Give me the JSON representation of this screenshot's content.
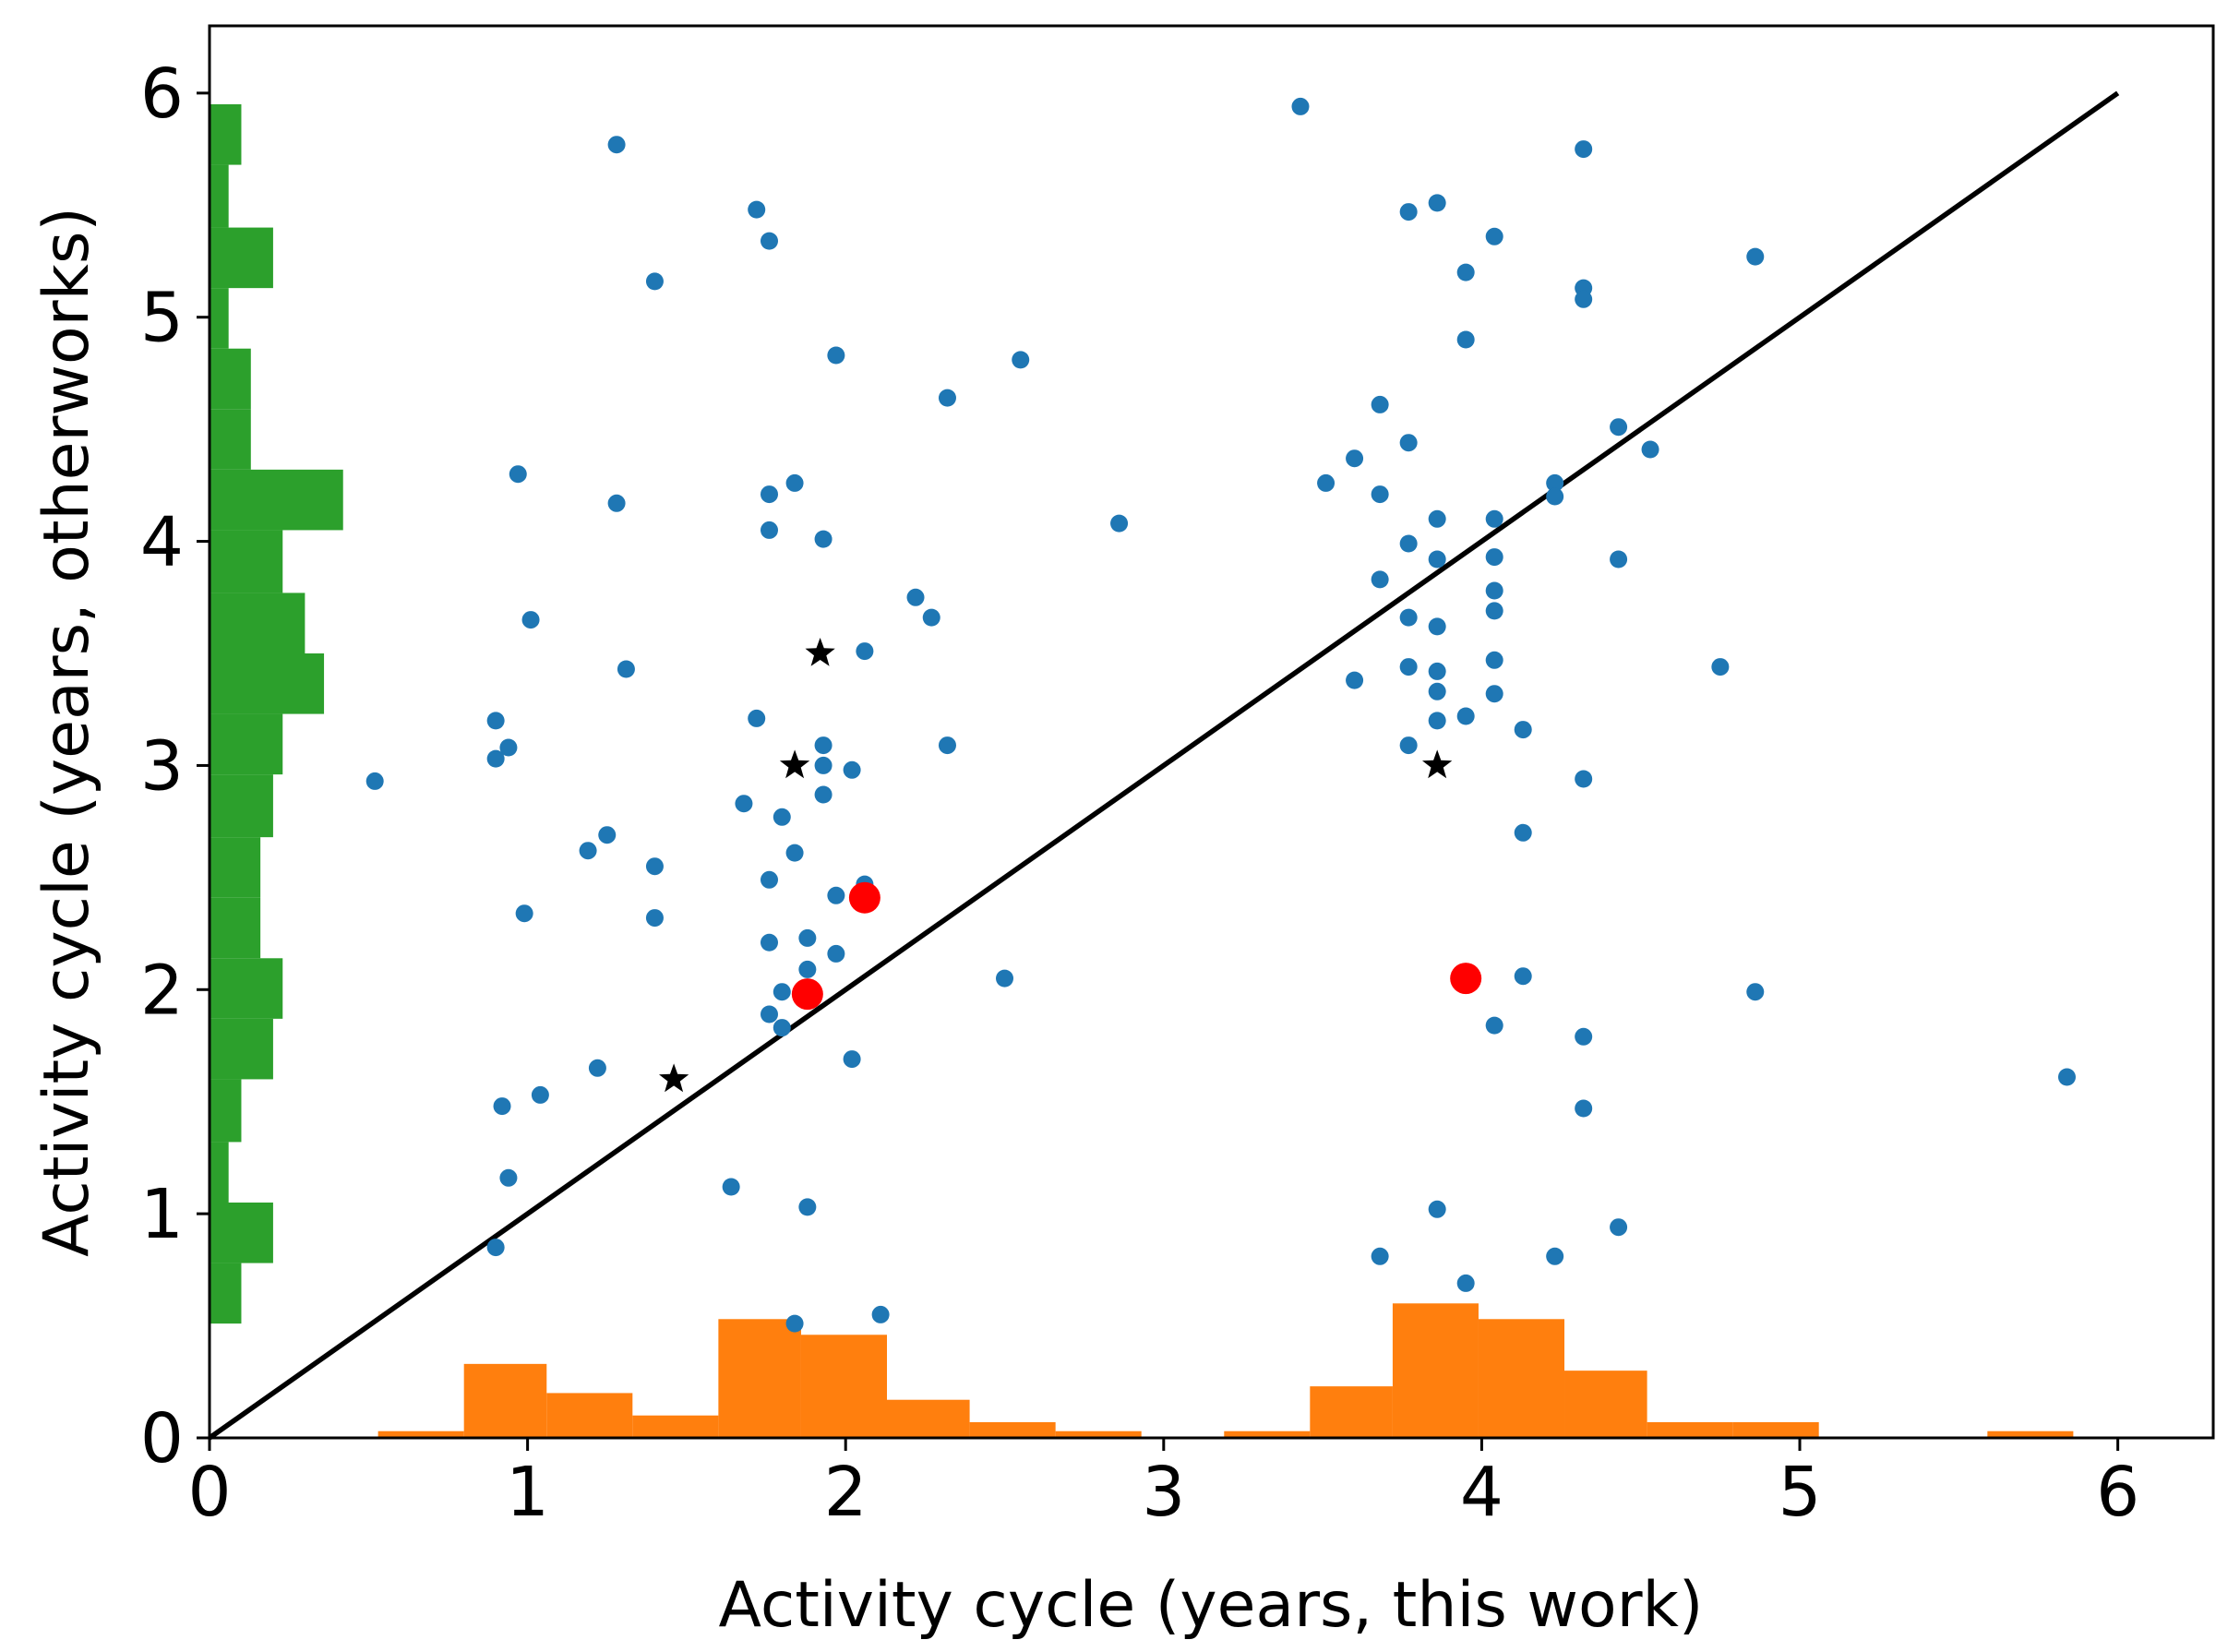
{
  "chart_data": {
    "type": "scatter",
    "title": "",
    "xlabel": "Activity cycle (years, this work)",
    "ylabel": "Activity cycle (years, otherworks)",
    "xlim": [
      0,
      6.3
    ],
    "ylim": [
      0,
      6.3
    ],
    "xticks": [
      "0",
      "1",
      "2",
      "3",
      "4",
      "5",
      "6"
    ],
    "yticks": [
      "0",
      "1",
      "2",
      "3",
      "4",
      "5",
      "6"
    ],
    "grid": false,
    "colors": {
      "points": "#1f77b4",
      "highlight": "#ff0000",
      "stars": "#000000",
      "line": "#000000",
      "hist_x": "#ff7f0e",
      "hist_y": "#2ca02c"
    },
    "reference_line": {
      "x": [
        0,
        6
      ],
      "y": [
        0,
        6
      ]
    },
    "series": [
      {
        "marker": "dot",
        "points": [
          [
            0.52,
            2.93
          ],
          [
            0.9,
            3.2
          ],
          [
            0.9,
            3.03
          ],
          [
            0.94,
            3.08
          ],
          [
            0.97,
            4.3
          ],
          [
            1.01,
            3.65
          ],
          [
            0.99,
            2.34
          ],
          [
            0.92,
            1.48
          ],
          [
            1.04,
            1.53
          ],
          [
            0.94,
            1.16
          ],
          [
            0.9,
            0.85
          ],
          [
            1.19,
            2.62
          ],
          [
            1.25,
            2.69
          ],
          [
            1.28,
            4.17
          ],
          [
            1.28,
            5.77
          ],
          [
            1.31,
            3.43
          ],
          [
            1.4,
            2.55
          ],
          [
            1.4,
            2.32
          ],
          [
            1.4,
            5.16
          ],
          [
            1.22,
            1.65
          ],
          [
            1.64,
            1.12
          ],
          [
            1.68,
            2.83
          ],
          [
            1.72,
            3.21
          ],
          [
            1.72,
            5.48
          ],
          [
            1.76,
            5.34
          ],
          [
            1.76,
            4.21
          ],
          [
            1.76,
            4.05
          ],
          [
            1.84,
            4.26
          ],
          [
            1.93,
            4.01
          ],
          [
            1.76,
            2.49
          ],
          [
            1.8,
            2.77
          ],
          [
            1.84,
            2.61
          ],
          [
            1.76,
            2.21
          ],
          [
            1.88,
            2.23
          ],
          [
            1.88,
            2.09
          ],
          [
            1.8,
            1.99
          ],
          [
            1.76,
            1.89
          ],
          [
            1.8,
            1.83
          ],
          [
            1.88,
            1.03
          ],
          [
            1.84,
            0.51
          ],
          [
            1.93,
            3.09
          ],
          [
            1.93,
            3.0
          ],
          [
            1.93,
            2.87
          ],
          [
            1.97,
            2.42
          ],
          [
            1.97,
            2.16
          ],
          [
            2.02,
            2.98
          ],
          [
            2.06,
            3.51
          ],
          [
            2.06,
            2.47
          ],
          [
            2.02,
            1.69
          ],
          [
            2.11,
            0.55
          ],
          [
            1.97,
            4.83
          ],
          [
            2.22,
            3.75
          ],
          [
            2.27,
            3.66
          ],
          [
            2.32,
            3.09
          ],
          [
            2.32,
            4.64
          ],
          [
            2.5,
            2.05
          ],
          [
            2.55,
            4.81
          ],
          [
            2.86,
            4.08
          ],
          [
            3.43,
            5.94
          ],
          [
            3.51,
            4.26
          ],
          [
            3.6,
            4.37
          ],
          [
            3.6,
            3.38
          ],
          [
            3.68,
            4.61
          ],
          [
            3.68,
            4.21
          ],
          [
            3.68,
            3.83
          ],
          [
            3.68,
            0.81
          ],
          [
            3.77,
            5.47
          ],
          [
            3.77,
            4.44
          ],
          [
            3.77,
            3.99
          ],
          [
            3.77,
            3.66
          ],
          [
            3.77,
            3.44
          ],
          [
            3.77,
            3.09
          ],
          [
            3.86,
            5.51
          ],
          [
            3.86,
            4.1
          ],
          [
            3.86,
            3.92
          ],
          [
            3.86,
            3.62
          ],
          [
            3.86,
            3.42
          ],
          [
            3.86,
            3.33
          ],
          [
            3.86,
            3.2
          ],
          [
            3.86,
            1.02
          ],
          [
            3.95,
            5.2
          ],
          [
            3.95,
            4.9
          ],
          [
            3.95,
            3.22
          ],
          [
            3.95,
            0.69
          ],
          [
            4.04,
            5.36
          ],
          [
            4.04,
            4.1
          ],
          [
            4.04,
            3.93
          ],
          [
            4.04,
            3.78
          ],
          [
            4.04,
            3.69
          ],
          [
            4.04,
            3.47
          ],
          [
            4.04,
            3.32
          ],
          [
            4.04,
            1.84
          ],
          [
            4.13,
            3.16
          ],
          [
            4.13,
            2.7
          ],
          [
            4.13,
            2.06
          ],
          [
            4.23,
            4.26
          ],
          [
            4.23,
            4.2
          ],
          [
            4.23,
            0.81
          ],
          [
            4.32,
            5.75
          ],
          [
            4.32,
            5.13
          ],
          [
            4.32,
            5.08
          ],
          [
            4.32,
            2.94
          ],
          [
            4.32,
            1.79
          ],
          [
            4.32,
            1.47
          ],
          [
            4.43,
            4.51
          ],
          [
            4.43,
            3.92
          ],
          [
            4.43,
            0.94
          ],
          [
            4.53,
            4.41
          ],
          [
            4.75,
            3.44
          ],
          [
            4.86,
            5.27
          ],
          [
            4.86,
            1.99
          ],
          [
            5.84,
            1.61
          ]
        ]
      },
      {
        "marker": "big-dot",
        "points": [
          [
            2.06,
            2.41
          ],
          [
            1.88,
            1.98
          ],
          [
            3.95,
            2.05
          ]
        ]
      },
      {
        "marker": "star",
        "points": [
          [
            1.92,
            3.5
          ],
          [
            1.84,
            3.0
          ],
          [
            1.46,
            1.6
          ],
          [
            3.86,
            3.0
          ]
        ]
      }
    ],
    "histogram_x": {
      "bin_edges": [
        0.53,
        0.8,
        1.06,
        1.33,
        1.6,
        1.86,
        2.13,
        2.39,
        2.66,
        2.93,
        3.19,
        3.46,
        3.72,
        3.99,
        4.26,
        4.52,
        4.79,
        5.06,
        5.32,
        5.59,
        5.86
      ],
      "heights": [
        0.03,
        0.33,
        0.2,
        0.1,
        0.53,
        0.46,
        0.17,
        0.07,
        0.03,
        0,
        0.03,
        0.23,
        0.6,
        0.53,
        0.3,
        0.07,
        0.07,
        0,
        0,
        0.03
      ]
    },
    "histogram_y": {
      "bin_edges": [
        0.51,
        0.78,
        1.05,
        1.32,
        1.6,
        1.87,
        2.14,
        2.41,
        2.68,
        2.96,
        3.23,
        3.5,
        3.77,
        4.05,
        4.32,
        4.59,
        4.86,
        5.13,
        5.4,
        5.68,
        5.95
      ],
      "widths": [
        0.1,
        0.2,
        0.06,
        0.1,
        0.2,
        0.23,
        0.16,
        0.16,
        0.2,
        0.23,
        0.36,
        0.3,
        0.23,
        0.42,
        0.13,
        0.13,
        0.06,
        0.2,
        0.06,
        0.1
      ]
    }
  }
}
